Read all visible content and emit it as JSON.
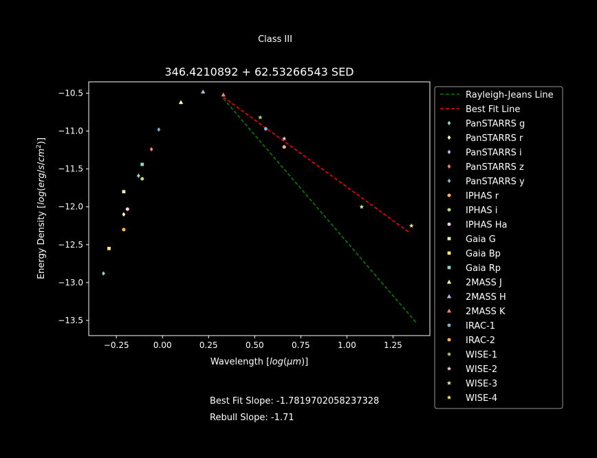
{
  "figure": {
    "suptitle": "Class III",
    "notes": [
      "Best Fit Slope: -1.7819702058237328",
      "Rebull Slope: -1.71"
    ]
  },
  "chart_data": {
    "type": "scatter",
    "title": "346.4210892 + 62.53266543 SED",
    "xlabel": "Wavelength [log(μm)]",
    "ylabel": "Energy Density [log(erg/s/cm²)]",
    "xlim": [
      -0.4,
      1.45
    ],
    "ylim": [
      -13.7,
      -10.35
    ],
    "xticks": [
      -0.25,
      0.0,
      0.25,
      0.5,
      0.75,
      1.0,
      1.25
    ],
    "xtick_labels": [
      "−0.25",
      "0.00",
      "0.25",
      "0.50",
      "0.75",
      "1.00",
      "1.25"
    ],
    "yticks": [
      -10.5,
      -11.0,
      -11.5,
      -12.0,
      -12.5,
      -13.0,
      -13.5
    ],
    "ytick_labels": [
      "−10.5",
      "−11.0",
      "−11.5",
      "−12.0",
      "−12.5",
      "−13.0",
      "−13.5"
    ],
    "grid": false,
    "legend_position": "outside-right",
    "lines": [
      {
        "name": "Rayleigh-Jeans Line",
        "color": "#008000",
        "dash": "dashed",
        "x": [
          0.33,
          1.38
        ],
        "y": [
          -10.57,
          -13.54
        ]
      },
      {
        "name": "Best Fit Line",
        "color": "#ff0000",
        "dash": "dashed",
        "x": [
          0.33,
          1.34
        ],
        "y": [
          -10.55,
          -12.34
        ]
      }
    ],
    "series": [
      {
        "name": "PanSTARRS g",
        "color": "#8dd3c7",
        "marker": "diamond",
        "points": [
          [
            -0.32,
            -12.88
          ]
        ]
      },
      {
        "name": "PanSTARRS r",
        "color": "#ffffb3",
        "marker": "diamond",
        "points": [
          [
            -0.21,
            -12.1
          ]
        ]
      },
      {
        "name": "PanSTARRS i",
        "color": "#bebada",
        "marker": "diamond",
        "points": [
          [
            -0.13,
            -11.59
          ]
        ]
      },
      {
        "name": "PanSTARRS z",
        "color": "#fb8072",
        "marker": "diamond",
        "points": [
          [
            -0.06,
            -11.24
          ]
        ]
      },
      {
        "name": "PanSTARRS y",
        "color": "#80b1d3",
        "marker": "diamond",
        "points": [
          [
            -0.02,
            -10.98
          ]
        ]
      },
      {
        "name": "IPHAS r",
        "color": "#fdb462",
        "marker": "circle",
        "points": [
          [
            -0.21,
            -12.3
          ]
        ]
      },
      {
        "name": "IPHAS i",
        "color": "#b3de69",
        "marker": "circle",
        "points": [
          [
            -0.11,
            -11.63
          ]
        ]
      },
      {
        "name": "IPHAS Ha",
        "color": "#fccde5",
        "marker": "circle",
        "points": [
          [
            -0.19,
            -12.03
          ]
        ]
      },
      {
        "name": "Gaia G",
        "color": "#d9f2b0",
        "marker": "square",
        "points": [
          [
            -0.21,
            -11.8
          ]
        ]
      },
      {
        "name": "Gaia Bp",
        "color": "#ffed6f",
        "marker": "square",
        "points": [
          [
            -0.29,
            -12.55
          ]
        ]
      },
      {
        "name": "Gaia Rp",
        "color": "#8dd3c7",
        "marker": "square",
        "points": [
          [
            -0.11,
            -11.44
          ]
        ]
      },
      {
        "name": "2MASS J",
        "color": "#ffffb3",
        "marker": "triangle",
        "points": [
          [
            0.1,
            -10.62
          ]
        ]
      },
      {
        "name": "2MASS H",
        "color": "#bebada",
        "marker": "triangle",
        "points": [
          [
            0.22,
            -10.48
          ]
        ]
      },
      {
        "name": "2MASS K",
        "color": "#fb8072",
        "marker": "triangle",
        "points": [
          [
            0.33,
            -10.52
          ]
        ]
      },
      {
        "name": "IRAC-1",
        "color": "#80b1d3",
        "marker": "circle",
        "points": [
          [
            0.56,
            -10.97
          ]
        ]
      },
      {
        "name": "IRAC-2",
        "color": "#fdb462",
        "marker": "circle",
        "points": [
          [
            0.66,
            -11.21
          ]
        ]
      },
      {
        "name": "WISE-1",
        "color": "#b3de69",
        "marker": "star",
        "points": [
          [
            0.53,
            -10.82
          ]
        ]
      },
      {
        "name": "WISE-2",
        "color": "#fccde5",
        "marker": "star",
        "points": [
          [
            0.66,
            -11.1
          ]
        ]
      },
      {
        "name": "WISE-3",
        "color": "#d9f2b0",
        "marker": "star",
        "points": [
          [
            1.08,
            -12.0
          ]
        ]
      },
      {
        "name": "WISE-4",
        "color": "#ffed6f",
        "marker": "star",
        "points": [
          [
            1.35,
            -12.25
          ]
        ]
      }
    ]
  }
}
